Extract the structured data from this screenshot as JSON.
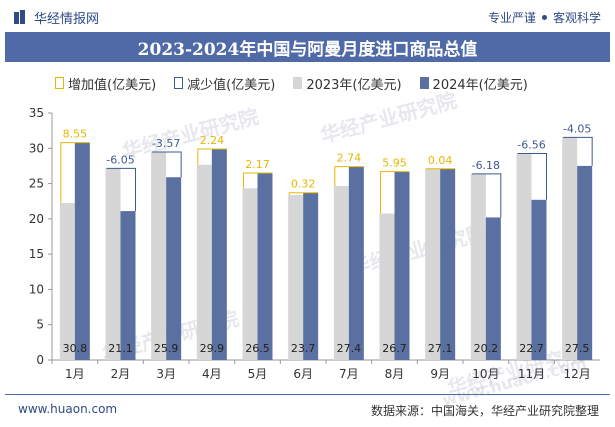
{
  "header": {
    "brand": "华经情报网",
    "slogan_left": "专业严谨",
    "slogan_right": "客观科学"
  },
  "footer": {
    "website": "www.huaon.com",
    "source": "数据来源：中国海关，华经产业研究院整理"
  },
  "watermarks": [
    "华经产业研究院",
    "www.huaon.com"
  ],
  "colors": {
    "title_bg": "#4f6aa6",
    "bar_2023": "#d6d6d6",
    "bar_2024": "#5a70a0",
    "increase": "#e6b800",
    "decrease": "#3f5a8e"
  },
  "chart_data": {
    "type": "bar",
    "title": "2023-2024年中国与阿曼月度进口商品总值",
    "categories": [
      "1月",
      "2月",
      "3月",
      "4月",
      "5月",
      "6月",
      "7月",
      "8月",
      "9月",
      "10月",
      "11月",
      "12月"
    ],
    "series": [
      {
        "name": "2023年(亿美元)",
        "values": [
          22.25,
          27.15,
          29.47,
          27.66,
          24.33,
          23.38,
          24.66,
          20.75,
          27.06,
          26.38,
          29.26,
          31.55
        ]
      },
      {
        "name": "2024年(亿美元)",
        "values": [
          30.8,
          21.1,
          25.9,
          29.9,
          26.5,
          23.7,
          27.4,
          26.7,
          27.1,
          20.2,
          22.7,
          27.5
        ]
      }
    ],
    "change": {
      "increase_label": "增加值(亿美元)",
      "decrease_label": "减少值(亿美元)",
      "values": [
        8.55,
        -6.05,
        -3.57,
        2.24,
        2.17,
        0.32,
        2.74,
        5.95,
        0.04,
        -6.18,
        -6.56,
        -4.05
      ],
      "labels": [
        "8.55",
        "-6.05",
        "-3.57",
        "2.24",
        "2.17",
        "0.32",
        "2.74",
        "5.95",
        "0.04",
        "-6.18",
        "-6.56",
        "-4.05"
      ]
    },
    "value_labels_2024": [
      "30.8",
      "21.1",
      "25.9",
      "29.9",
      "26.5",
      "23.7",
      "27.4",
      "26.7",
      "27.1",
      "20.2",
      "22.7",
      "27.5"
    ],
    "ylim": [
      0,
      35
    ],
    "yticks": [
      "0",
      "5",
      "10",
      "15",
      "20",
      "25",
      "30",
      "35"
    ],
    "grid": false,
    "legend_position": "top-left"
  }
}
